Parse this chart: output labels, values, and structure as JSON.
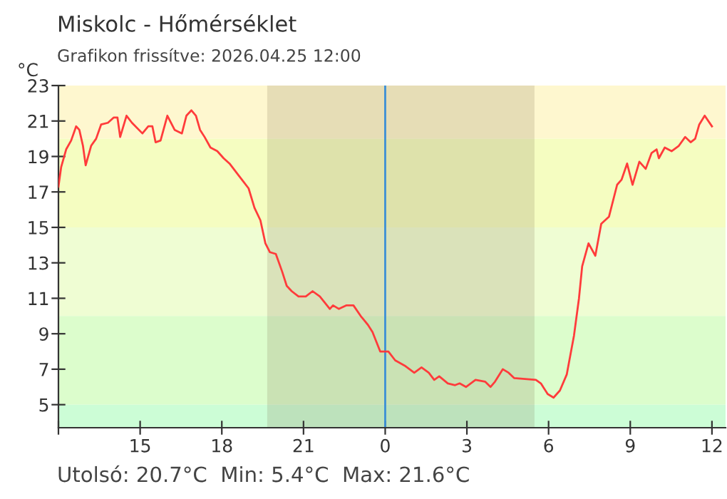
{
  "chart_data": {
    "type": "line",
    "title": "Miskolc - Hőmérséklet",
    "subtitle": "Grafikon frissítve: 2026.04.25 12:00",
    "ylabel": "°C",
    "annotations": [
      "Utolsó: 20.7°C  Min: 5.4°C  Max: 21.6°C"
    ],
    "series": [
      {
        "color": "#ff3b3b",
        "x": [
          "2026-04-24T12:00",
          "2026-04-24T12:06",
          "2026-04-24T12:17",
          "2026-04-24T12:28",
          "2026-04-24T12:39",
          "2026-04-24T12:46",
          "2026-04-24T12:54",
          "2026-04-24T13:00",
          "2026-04-24T13:12",
          "2026-04-24T13:23",
          "2026-04-24T13:34",
          "2026-04-24T13:49",
          "2026-04-24T14:02",
          "2026-04-24T14:10",
          "2026-04-24T14:16",
          "2026-04-24T14:30",
          "2026-04-24T14:42",
          "2026-04-24T15:05",
          "2026-04-24T15:18",
          "2026-04-24T15:27",
          "2026-04-24T15:34",
          "2026-04-24T15:45",
          "2026-04-24T16:00",
          "2026-04-24T16:16",
          "2026-04-24T16:32",
          "2026-04-24T16:42",
          "2026-04-24T16:53",
          "2026-04-24T17:03",
          "2026-04-24T17:12",
          "2026-04-24T17:22",
          "2026-04-24T17:35",
          "2026-04-24T17:50",
          "2026-04-24T18:04",
          "2026-04-24T18:17",
          "2026-04-24T18:38",
          "2026-04-24T18:59",
          "2026-04-24T19:12",
          "2026-04-24T19:25",
          "2026-04-24T19:36",
          "2026-04-24T19:46",
          "2026-04-24T19:59",
          "2026-04-24T20:13",
          "2026-04-24T20:23",
          "2026-04-24T20:34",
          "2026-04-24T20:49",
          "2026-04-24T21:05",
          "2026-04-24T21:20",
          "2026-04-24T21:36",
          "2026-04-24T21:58",
          "2026-04-24T22:05",
          "2026-04-24T22:18",
          "2026-04-24T22:34",
          "2026-04-24T22:50",
          "2026-04-24T23:06",
          "2026-04-24T23:22",
          "2026-04-24T23:32",
          "2026-04-24T23:49",
          "2026-04-25T00:07",
          "2026-04-25T00:22",
          "2026-04-25T00:43",
          "2026-04-25T01:04",
          "2026-04-25T01:20",
          "2026-04-25T01:36",
          "2026-04-25T01:48",
          "2026-04-25T01:59",
          "2026-04-25T02:18",
          "2026-04-25T02:34",
          "2026-04-25T02:44",
          "2026-04-25T02:58",
          "2026-04-25T03:19",
          "2026-04-25T03:40",
          "2026-04-25T03:52",
          "2026-04-25T04:02",
          "2026-04-25T04:19",
          "2026-04-25T04:32",
          "2026-04-25T04:44",
          "2026-04-25T05:32",
          "2026-04-25T05:43",
          "2026-04-25T05:58",
          "2026-04-25T06:11",
          "2026-04-25T06:25",
          "2026-04-25T06:40",
          "2026-04-25T06:56",
          "2026-04-25T07:07",
          "2026-04-25T07:14",
          "2026-04-25T07:28",
          "2026-04-25T07:43",
          "2026-04-25T07:56",
          "2026-04-25T08:13",
          "2026-04-25T08:31",
          "2026-04-25T08:41",
          "2026-04-25T08:53",
          "2026-04-25T09:05",
          "2026-04-25T09:20",
          "2026-04-25T09:34",
          "2026-04-25T09:47",
          "2026-04-25T09:58",
          "2026-04-25T10:03",
          "2026-04-25T10:16",
          "2026-04-25T10:31",
          "2026-04-25T10:47",
          "2026-04-25T11:01",
          "2026-04-25T11:13",
          "2026-04-25T11:23",
          "2026-04-25T11:32",
          "2026-04-25T11:44",
          "2026-04-25T12:00"
        ],
        "values": [
          17.3,
          18.4,
          19.4,
          19.9,
          20.7,
          20.5,
          19.6,
          18.5,
          19.6,
          20.0,
          20.8,
          20.9,
          21.2,
          21.2,
          20.1,
          21.3,
          20.9,
          20.3,
          20.7,
          20.7,
          19.8,
          19.9,
          21.3,
          20.5,
          20.3,
          21.3,
          21.6,
          21.3,
          20.5,
          20.1,
          19.5,
          19.3,
          18.9,
          18.6,
          17.9,
          17.2,
          16.1,
          15.4,
          14.1,
          13.6,
          13.5,
          12.5,
          11.7,
          11.4,
          11.1,
          11.1,
          11.4,
          11.1,
          10.4,
          10.6,
          10.4,
          10.6,
          10.6,
          10.0,
          9.5,
          9.1,
          8.0,
          8.0,
          7.5,
          7.2,
          6.8,
          7.1,
          6.8,
          6.4,
          6.6,
          6.2,
          6.1,
          6.2,
          6.0,
          6.4,
          6.3,
          6.0,
          6.3,
          7.0,
          6.8,
          6.5,
          6.4,
          6.2,
          5.6,
          5.4,
          5.8,
          6.7,
          8.9,
          11.0,
          12.8,
          14.1,
          13.4,
          15.2,
          15.6,
          17.4,
          17.7,
          18.6,
          17.4,
          18.7,
          18.3,
          19.2,
          19.4,
          18.9,
          19.5,
          19.3,
          19.6,
          20.1,
          19.8,
          20.0,
          20.8,
          21.3,
          20.7
        ]
      }
    ],
    "xlim": [
      "2026-04-24T12:00",
      "2026-04-25T12:30"
    ],
    "ylim": [
      3.7,
      23
    ],
    "xticks": [
      {
        "value": "2026-04-24T12:00",
        "label": null
      },
      {
        "value": "2026-04-24T15:00",
        "label": "15"
      },
      {
        "value": "2026-04-24T18:00",
        "label": "18"
      },
      {
        "value": "2026-04-24T21:00",
        "label": "21"
      },
      {
        "value": "2026-04-25T00:00",
        "label": "0"
      },
      {
        "value": "2026-04-25T03:00",
        "label": "3"
      },
      {
        "value": "2026-04-25T06:00",
        "label": "6"
      },
      {
        "value": "2026-04-25T09:00",
        "label": "9"
      },
      {
        "value": "2026-04-25T12:00",
        "label": "12"
      }
    ],
    "yticks": [
      5,
      7,
      9,
      11,
      13,
      15,
      17,
      19,
      21,
      23
    ],
    "bands": [
      {
        "axis": "y",
        "from": 20,
        "to": 23,
        "color": "#fef7cf"
      },
      {
        "axis": "y",
        "from": 15,
        "to": 20,
        "color": "#f5fdc1"
      },
      {
        "axis": "y",
        "from": 10,
        "to": 15,
        "color": "#effdd3"
      },
      {
        "axis": "y",
        "from": 5,
        "to": 10,
        "color": "#dcfdcc"
      },
      {
        "axis": "y",
        "from": 3.7,
        "to": 5,
        "color": "#ccfdd6"
      },
      {
        "axis": "x",
        "from": "2026-04-24T19:40",
        "to": "2026-04-25T05:29",
        "color": "#7a6a4a"
      }
    ],
    "ref_lines": [
      {
        "axis": "x",
        "value": "2026-04-25T00:00",
        "color": "#3b8fd6"
      }
    ],
    "grid": false,
    "legend": false,
    "marker": "none",
    "line_style": "solid"
  }
}
